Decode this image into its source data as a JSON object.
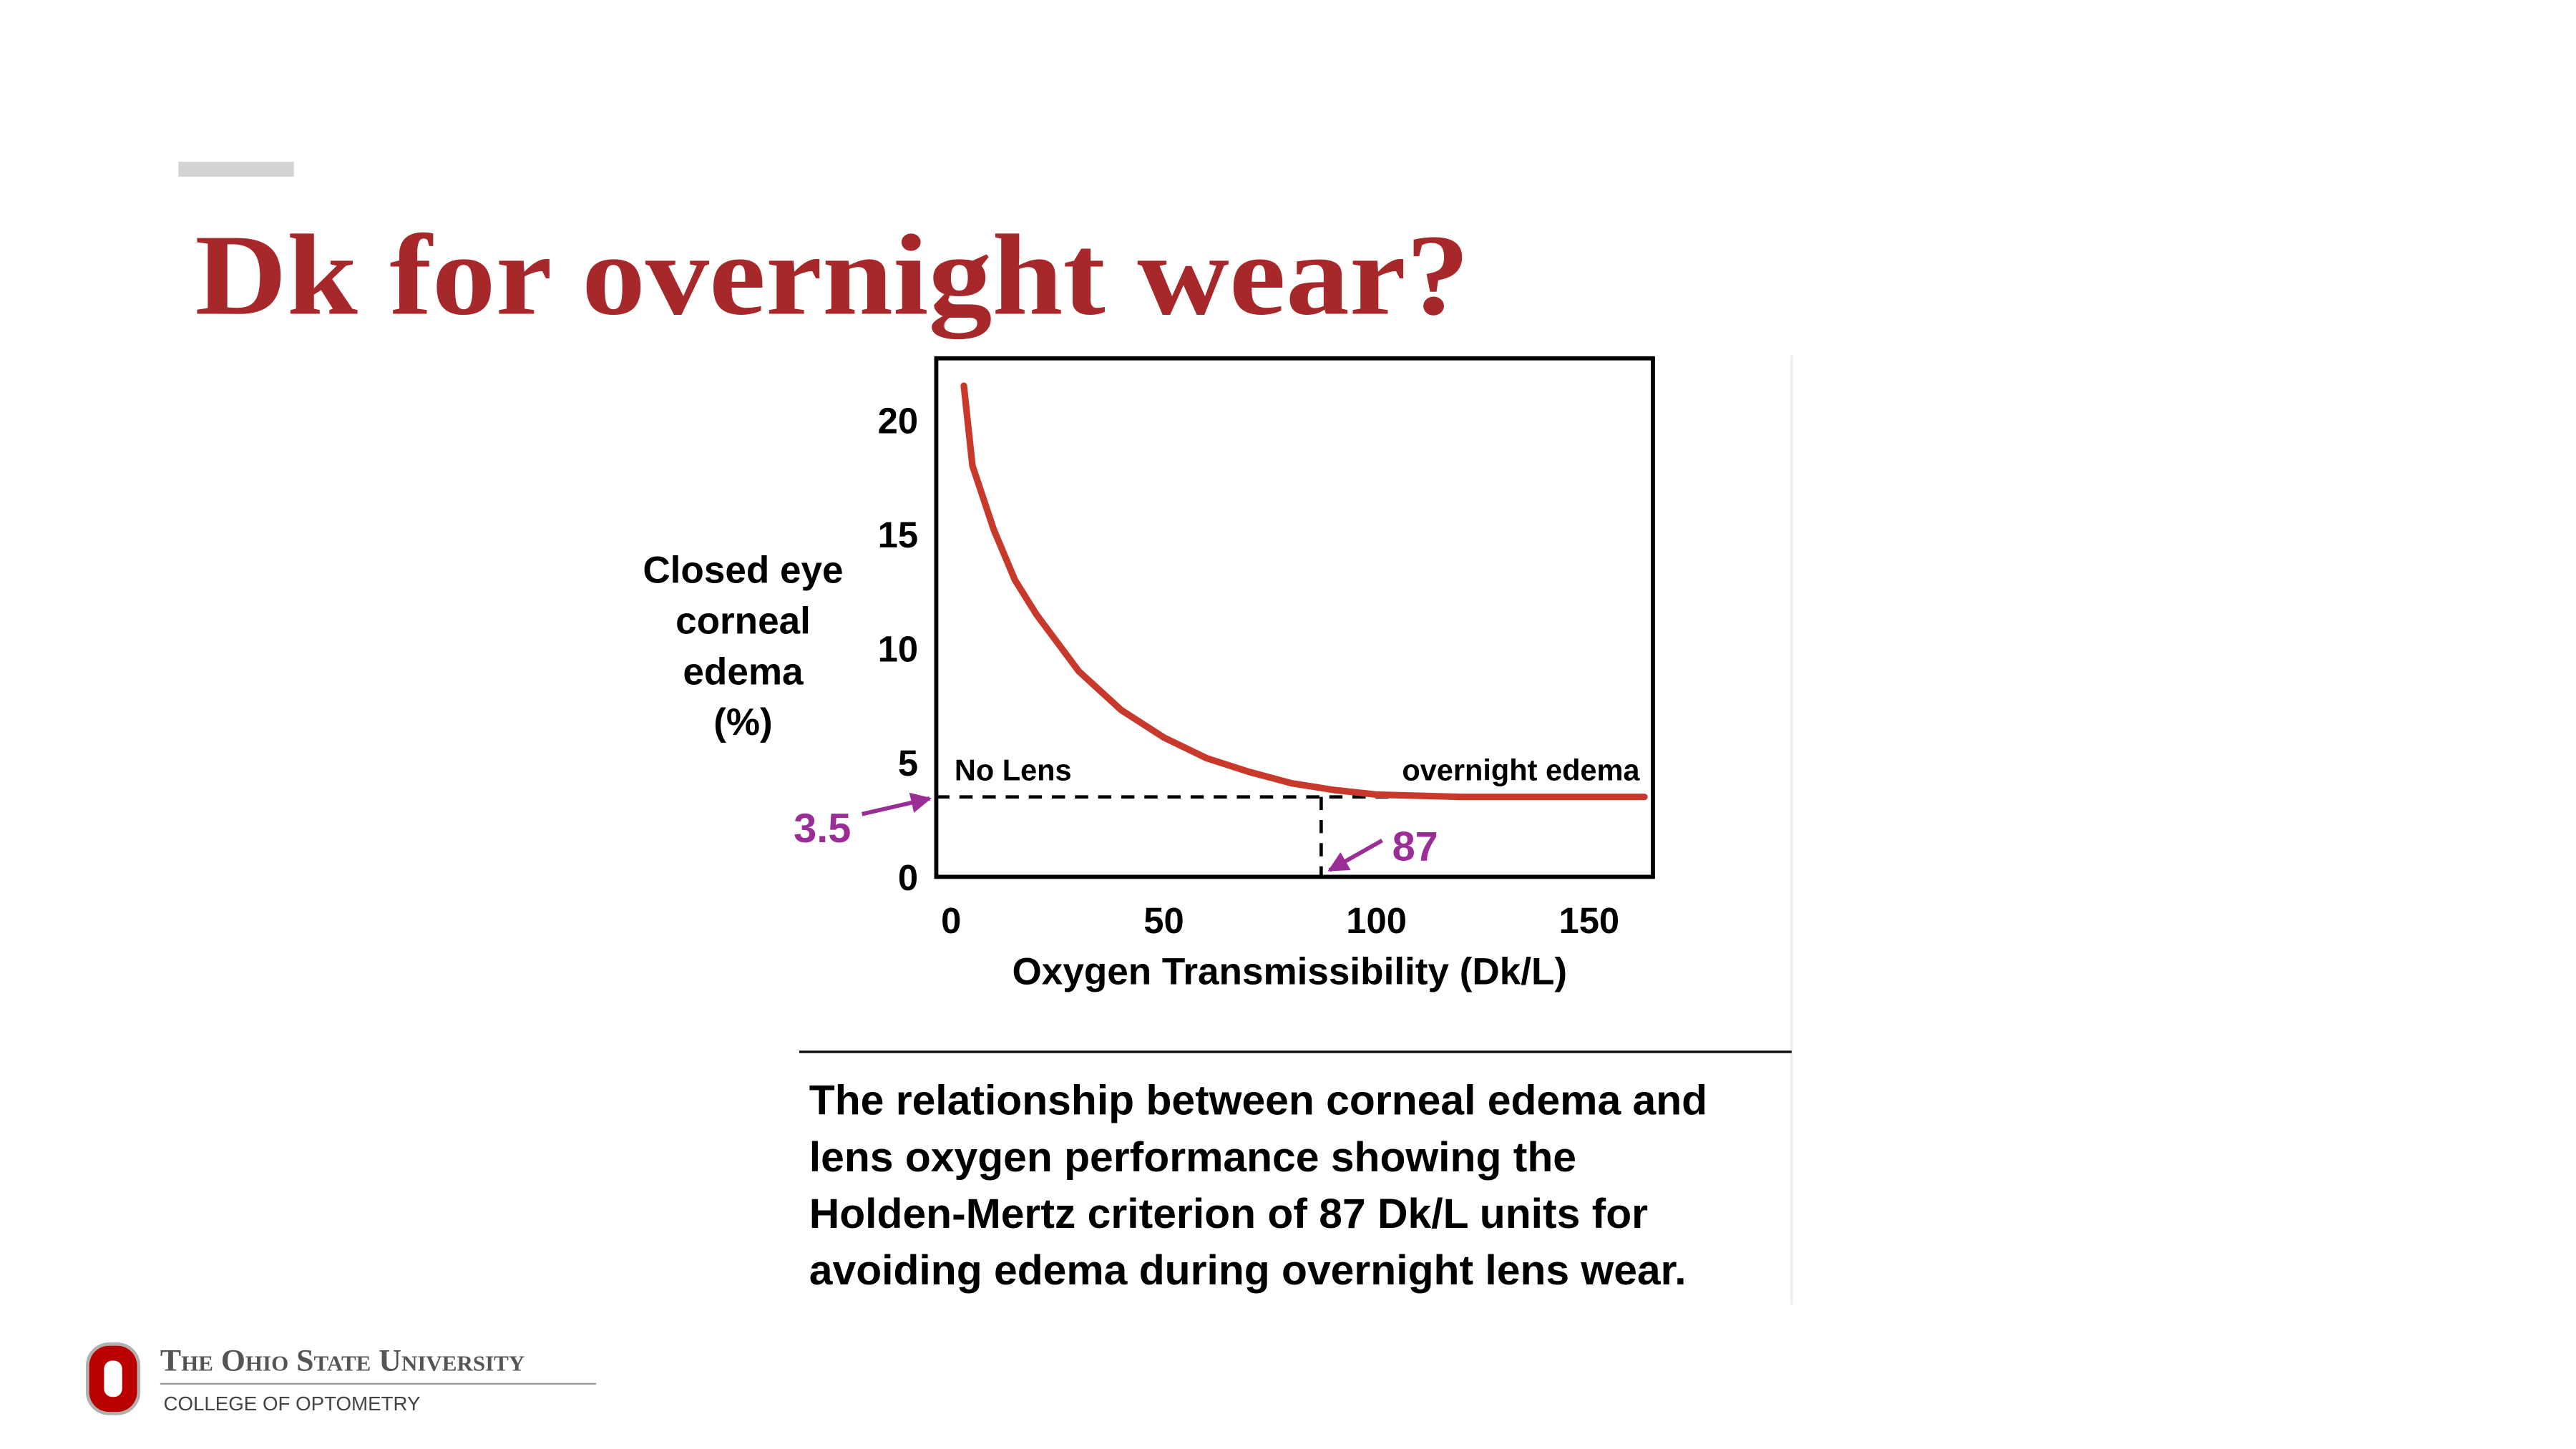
{
  "slide": {
    "title": "Dk for overnight wear?",
    "caption": [
      "The relationship between corneal edema and",
      "lens oxygen performance showing the",
      "Holden-Mertz criterion of 87 Dk/L units for",
      "avoiding edema during overnight lens wear."
    ],
    "university": "The Ohio State University",
    "college": "COLLEGE OF OPTOMETRY"
  },
  "chart_data": {
    "type": "line",
    "xlabel": "Oxygen Transmissibility (Dk/L)",
    "ylabel": [
      "Closed eye",
      "corneal",
      "edema",
      "(%)"
    ],
    "x": [
      3,
      5,
      10,
      15,
      20,
      30,
      40,
      50,
      60,
      70,
      80,
      90,
      100,
      120,
      140,
      163
    ],
    "series": [
      {
        "color": "#c8392b",
        "values": [
          21.5,
          18,
          15.2,
          13,
          11.5,
          9,
          7.3,
          6.1,
          5.2,
          4.6,
          4.1,
          3.8,
          3.6,
          3.5,
          3.5,
          3.5
        ]
      }
    ],
    "xlim": [
      -3.5,
      165
    ],
    "ylim": [
      0,
      22.7
    ],
    "xticks": [
      0,
      50,
      100,
      150
    ],
    "yticks": [
      0,
      5,
      10,
      15,
      20
    ],
    "hline": {
      "value": 3.5,
      "left_label": "No Lens",
      "right_label": "overnight edema"
    },
    "vline": {
      "value": 87
    },
    "annotation_color": "#9b2d96"
  }
}
